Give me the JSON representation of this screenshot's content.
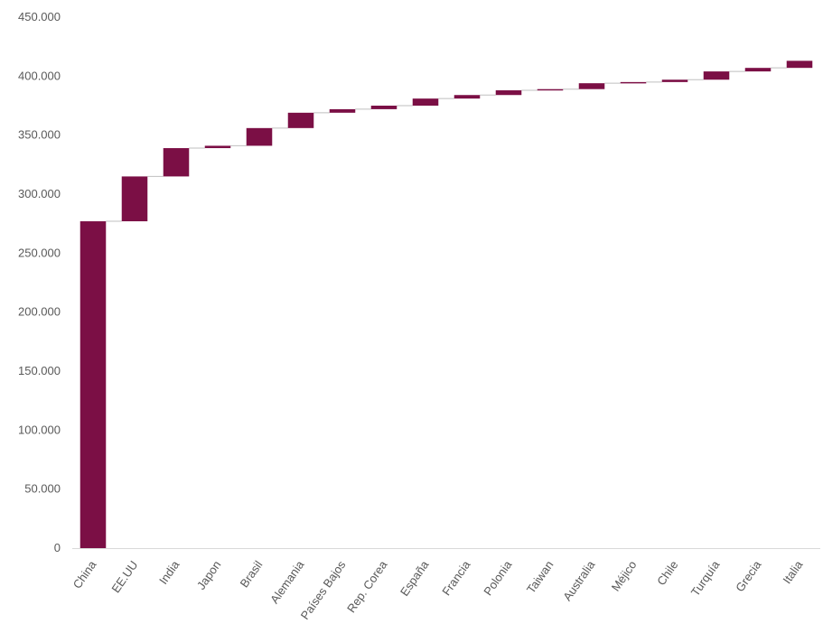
{
  "chart_data": {
    "type": "bar",
    "subtype": "waterfall",
    "title": "",
    "xlabel": "",
    "ylabel": "",
    "ylim": [
      0,
      450000
    ],
    "y_tick_values": [
      0,
      50000,
      100000,
      150000,
      200000,
      250000,
      300000,
      350000,
      400000,
      450000
    ],
    "y_tick_labels": [
      "0",
      "50.000",
      "100.000",
      "150.000",
      "200.000",
      "250.000",
      "300.000",
      "350.000",
      "400.000",
      "450.000"
    ],
    "categories": [
      "China",
      "EE.UU",
      "India",
      "Japon",
      "Brasil",
      "Alemania",
      "Países Bajos",
      "Rep. Corea",
      "España",
      "Francia",
      "Polonia",
      "Taiwan",
      "Australia",
      "Méjico",
      "Chile",
      "Turquía",
      "Grecia",
      "Italia"
    ],
    "values": [
      277000,
      38000,
      24000,
      2000,
      15000,
      13000,
      3000,
      3000,
      6000,
      3000,
      4000,
      1000,
      5000,
      1000,
      2000,
      7000,
      3000,
      6000
    ],
    "grid": false,
    "legend": "none",
    "bar_color": "#7b0f45",
    "connector_color": "#bfbfbf"
  }
}
